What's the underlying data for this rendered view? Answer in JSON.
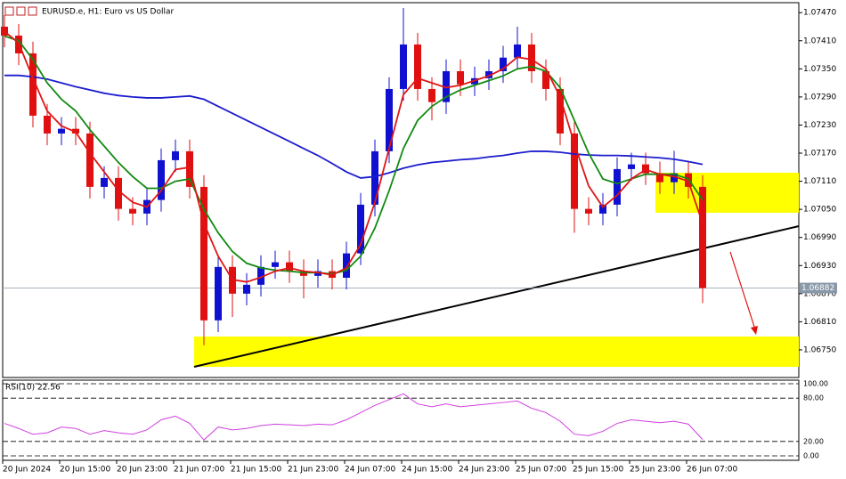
{
  "chart_data": {
    "type": "candlestick",
    "title": "EURUSD.e, H1:  Euro vs US Dollar",
    "up_color": "#1010d0",
    "down_color": "#e01010",
    "categories": [
      "20 Jun 2024",
      "20 Jun 15:00",
      "20 Jun 23:00",
      "21 Jun 07:00",
      "21 Jun 15:00",
      "21 Jun 23:00",
      "24 Jun 07:00",
      "24 Jun 15:00",
      "24 Jun 23:00",
      "25 Jun 07:00",
      "25 Jun 15:00",
      "25 Jun 23:00",
      "26 Jun 07:00"
    ],
    "open": [
      1.0744,
      1.07421,
      1.07383,
      1.0725,
      1.07212,
      1.07222,
      1.07212,
      1.07098,
      1.07117,
      1.07051,
      1.07041,
      1.0707,
      1.07155,
      1.07174,
      1.07098,
      1.06813,
      1.06927,
      1.0687,
      1.06889,
      1.06927,
      1.06937,
      1.06918,
      1.06908,
      1.06918,
      1.06904,
      1.06956,
      1.0706,
      1.07174,
      1.07307,
      1.07402,
      1.07307,
      1.07279,
      1.07345,
      1.07317,
      1.0733,
      1.07345,
      1.07374,
      1.07402,
      1.07345,
      1.07307,
      1.07212,
      1.07051,
      1.07041,
      1.0706,
      1.07136,
      1.07146,
      1.07127,
      1.07108,
      1.07127,
      1.07098
    ],
    "high": [
      1.07465,
      1.07446,
      1.07408,
      1.07275,
      1.07247,
      1.07247,
      1.07237,
      1.07142,
      1.07142,
      1.07076,
      1.07095,
      1.0718,
      1.07199,
      1.07199,
      1.07123,
      1.06952,
      1.06952,
      1.06914,
      1.06952,
      1.06962,
      1.06962,
      1.06943,
      1.06943,
      1.06943,
      1.06981,
      1.07085,
      1.07199,
      1.07332,
      1.0748,
      1.07427,
      1.07332,
      1.0737,
      1.0737,
      1.07355,
      1.0737,
      1.07399,
      1.0744,
      1.07427,
      1.0737,
      1.07332,
      1.07237,
      1.07076,
      1.07085,
      1.07161,
      1.07171,
      1.07171,
      1.07152,
      1.07175,
      1.07152,
      1.07123
    ],
    "low": [
      1.07396,
      1.07358,
      1.07225,
      1.07187,
      1.07187,
      1.07187,
      1.07073,
      1.07073,
      1.07026,
      1.07016,
      1.07016,
      1.07045,
      1.0713,
      1.07073,
      1.0676,
      1.06788,
      1.0682,
      1.06845,
      1.06864,
      1.06902,
      1.06893,
      1.0686,
      1.06883,
      1.06879,
      1.06879,
      1.06931,
      1.07035,
      1.07149,
      1.07282,
      1.07282,
      1.0724,
      1.07254,
      1.07292,
      1.07292,
      1.07305,
      1.0732,
      1.07349,
      1.0732,
      1.07282,
      1.07187,
      1.07,
      1.07016,
      1.07016,
      1.07035,
      1.07111,
      1.07102,
      1.07083,
      1.07083,
      1.07073,
      1.0685
    ],
    "close": [
      1.07421,
      1.07383,
      1.0725,
      1.07212,
      1.07222,
      1.07212,
      1.07098,
      1.07117,
      1.07051,
      1.07041,
      1.0707,
      1.07155,
      1.07174,
      1.07098,
      1.06813,
      1.06927,
      1.0687,
      1.06889,
      1.06927,
      1.06937,
      1.06918,
      1.06908,
      1.06918,
      1.06904,
      1.06956,
      1.0706,
      1.07174,
      1.07307,
      1.07402,
      1.07307,
      1.07279,
      1.07345,
      1.07317,
      1.0733,
      1.07345,
      1.07374,
      1.07402,
      1.07345,
      1.07307,
      1.07212,
      1.07051,
      1.07041,
      1.0706,
      1.07136,
      1.07146,
      1.07127,
      1.07108,
      1.07127,
      1.07098,
      1.06882
    ],
    "overlays": [
      {
        "color": "#1c1ccf",
        "values": [
          1.07336,
          1.07336,
          1.07333,
          1.07328,
          1.0732,
          1.07312,
          1.07305,
          1.07298,
          1.07293,
          1.0729,
          1.07288,
          1.07288,
          1.0729,
          1.07292,
          1.07285,
          1.0727,
          1.07255,
          1.0724,
          1.07225,
          1.0721,
          1.07195,
          1.0718,
          1.07165,
          1.07148,
          1.0713,
          1.07117,
          1.0712,
          1.07128,
          1.07138,
          1.07145,
          1.0715,
          1.07153,
          1.07156,
          1.07158,
          1.07162,
          1.07165,
          1.0717,
          1.07174,
          1.07174,
          1.07172,
          1.07168,
          1.07166,
          1.07165,
          1.07165,
          1.07164,
          1.07162,
          1.0716,
          1.07157,
          1.07152,
          1.07146
        ]
      },
      {
        "color": "#128a12",
        "values": [
          1.0742,
          1.0741,
          1.0737,
          1.0732,
          1.07285,
          1.0726,
          1.0722,
          1.07185,
          1.0715,
          1.0712,
          1.07095,
          1.07095,
          1.0711,
          1.07115,
          1.0705,
          1.07,
          1.0696,
          1.06935,
          1.06925,
          1.0692,
          1.06918,
          1.06915,
          1.06915,
          1.06912,
          1.0692,
          1.0695,
          1.0701,
          1.0709,
          1.0718,
          1.0724,
          1.0727,
          1.0729,
          1.07305,
          1.07315,
          1.07325,
          1.07335,
          1.0735,
          1.07355,
          1.07345,
          1.0731,
          1.0724,
          1.0717,
          1.07115,
          1.07105,
          1.07115,
          1.07125,
          1.07125,
          1.07125,
          1.07115,
          1.0707
        ]
      },
      {
        "color": "#e01515",
        "values": [
          1.0743,
          1.07405,
          1.0733,
          1.0726,
          1.07228,
          1.07215,
          1.0717,
          1.0713,
          1.0709,
          1.07065,
          1.07055,
          1.0709,
          1.07135,
          1.0714,
          1.0702,
          1.0695,
          1.069,
          1.06895,
          1.06905,
          1.06918,
          1.06925,
          1.06918,
          1.06915,
          1.0691,
          1.06925,
          1.06975,
          1.07065,
          1.0718,
          1.07295,
          1.0733,
          1.0732,
          1.0731,
          1.07315,
          1.07325,
          1.07335,
          1.0735,
          1.07375,
          1.0737,
          1.0735,
          1.0729,
          1.0719,
          1.071,
          1.07055,
          1.0708,
          1.07115,
          1.07135,
          1.07125,
          1.0712,
          1.0711,
          1.0702
        ]
      }
    ],
    "ylim": [
      1.06691,
      1.07497
    ],
    "yticks": [
      {
        "value": 1.0747,
        "label": "1.07470"
      },
      {
        "value": 1.0741,
        "label": "1.07410"
      },
      {
        "value": 1.0735,
        "label": "1.07350"
      },
      {
        "value": 1.0729,
        "label": "1.07290"
      },
      {
        "value": 1.0723,
        "label": "1.07230"
      },
      {
        "value": 1.0717,
        "label": "1.07170"
      },
      {
        "value": 1.0711,
        "label": "1.07110"
      },
      {
        "value": 1.0705,
        "label": "1.07050"
      },
      {
        "value": 1.0699,
        "label": "1.06990"
      },
      {
        "value": 1.0693,
        "label": "1.06930"
      },
      {
        "value": 1.0687,
        "label": "1.06870"
      },
      {
        "value": 1.0681,
        "label": "1.06810"
      },
      {
        "value": 1.0675,
        "label": "1.06750"
      }
    ],
    "last_price": 1.06882,
    "rsi": {
      "title": "RSI(10) 22.56",
      "color": "#d040e0",
      "values": [
        45,
        38,
        30,
        32,
        40,
        38,
        30,
        35,
        32,
        30,
        36,
        50,
        55,
        45,
        22,
        40,
        36,
        38,
        42,
        44,
        43,
        42,
        44,
        43,
        50,
        60,
        70,
        78,
        86,
        72,
        68,
        72,
        68,
        70,
        72,
        74,
        76,
        66,
        60,
        48,
        30,
        28,
        34,
        45,
        50,
        48,
        46,
        48,
        44,
        22.56
      ],
      "ylim": [
        0,
        100
      ],
      "yticks": [
        {
          "value": 100,
          "label": "100.00"
        },
        {
          "value": 80,
          "label": "80.00"
        },
        {
          "value": 20,
          "label": "20.00"
        },
        {
          "value": 0,
          "label": "0.00"
        }
      ]
    }
  }
}
